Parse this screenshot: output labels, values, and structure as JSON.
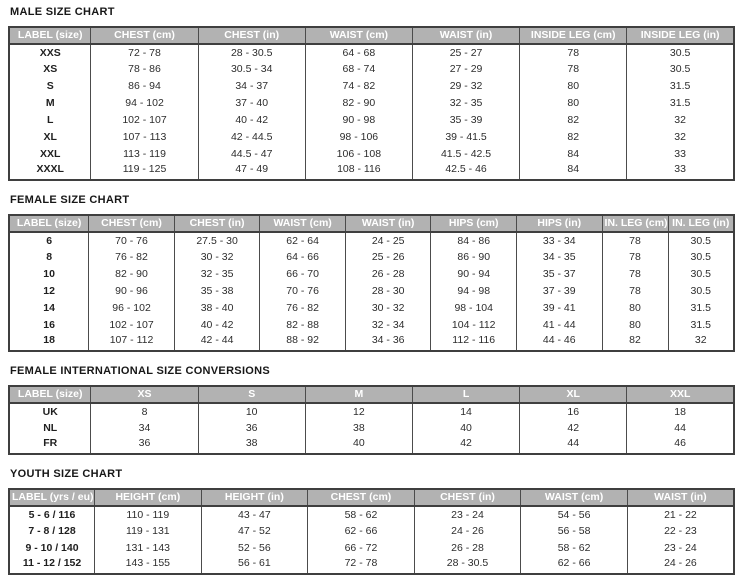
{
  "colors": {
    "header_bg": "#b2b2b2",
    "header_text": "#ffffff",
    "table_border": "#3f3f3f",
    "column_divider": "#4c4c4c",
    "body_text": "#2d2d2d",
    "title_text": "#171717",
    "page_bg": "#ffffff"
  },
  "tables": [
    {
      "title": "MALE SIZE CHART",
      "headers": [
        "LABEL (size)",
        "CHEST (cm)",
        "CHEST (in)",
        "WAIST (cm)",
        "WAIST (in)",
        "INSIDE LEG (cm)",
        "INSIDE LEG (in)"
      ],
      "rows": [
        [
          "XXS",
          "72 - 78",
          "28 - 30.5",
          "64 - 68",
          "25 - 27",
          "78",
          "30.5"
        ],
        [
          "XS",
          "78 - 86",
          "30.5 - 34",
          "68 - 74",
          "27 - 29",
          "78",
          "30.5"
        ],
        [
          "S",
          "86 - 94",
          "34 - 37",
          "74 - 82",
          "29 - 32",
          "80",
          "31.5"
        ],
        [
          "M",
          "94 - 102",
          "37 - 40",
          "82 - 90",
          "32 - 35",
          "80",
          "31.5"
        ],
        [
          "L",
          "102 - 107",
          "40 - 42",
          "90 - 98",
          "35 - 39",
          "82",
          "32"
        ],
        [
          "XL",
          "107 - 113",
          "42 - 44.5",
          "98 - 106",
          "39 - 41.5",
          "82",
          "32"
        ],
        [
          "XXL",
          "113 - 119",
          "44.5 - 47",
          "106 - 108",
          "41.5 - 42.5",
          "84",
          "33"
        ],
        [
          "XXXL",
          "119 - 125",
          "47 - 49",
          "108 - 116",
          "42.5 - 46",
          "84",
          "33"
        ]
      ]
    },
    {
      "title": "FEMALE SIZE CHART",
      "headers": [
        "LABEL (size)",
        "CHEST (cm)",
        "CHEST (in)",
        "WAIST (cm)",
        "WAIST (in)",
        "HIPS (cm)",
        "HIPS (in)",
        "IN. LEG (cm)",
        "IN. LEG (in)"
      ],
      "rows": [
        [
          "6",
          "70 - 76",
          "27.5 - 30",
          "62 - 64",
          "24 - 25",
          "84 - 86",
          "33 - 34",
          "78",
          "30.5"
        ],
        [
          "8",
          "76 - 82",
          "30 - 32",
          "64 - 66",
          "25 - 26",
          "86 - 90",
          "34 - 35",
          "78",
          "30.5"
        ],
        [
          "10",
          "82 - 90",
          "32 - 35",
          "66 - 70",
          "26 - 28",
          "90 - 94",
          "35 - 37",
          "78",
          "30.5"
        ],
        [
          "12",
          "90 - 96",
          "35 - 38",
          "70 - 76",
          "28 - 30",
          "94 - 98",
          "37 - 39",
          "78",
          "30.5"
        ],
        [
          "14",
          "96 - 102",
          "38 - 40",
          "76 - 82",
          "30 - 32",
          "98 - 104",
          "39 - 41",
          "80",
          "31.5"
        ],
        [
          "16",
          "102 - 107",
          "40 - 42",
          "82 - 88",
          "32 - 34",
          "104 - 112",
          "41 - 44",
          "80",
          "31.5"
        ],
        [
          "18",
          "107 - 112",
          "42 - 44",
          "88 - 92",
          "34 - 36",
          "112 - 116",
          "44 - 46",
          "82",
          "32"
        ]
      ]
    },
    {
      "title": "FEMALE INTERNATIONAL SIZE CONVERSIONS",
      "headers": [
        "LABEL (size)",
        "XS",
        "S",
        "M",
        "L",
        "XL",
        "XXL"
      ],
      "rows": [
        [
          "UK",
          "8",
          "10",
          "12",
          "14",
          "16",
          "18"
        ],
        [
          "NL",
          "34",
          "36",
          "38",
          "40",
          "42",
          "44"
        ],
        [
          "FR",
          "36",
          "38",
          "40",
          "42",
          "44",
          "46"
        ]
      ]
    },
    {
      "title": "YOUTH SIZE CHART",
      "headers": [
        "LABEL (yrs / eu)",
        "HEIGHT (cm)",
        "HEIGHT (in)",
        "CHEST (cm)",
        "CHEST (in)",
        "WAIST (cm)",
        "WAIST (in)"
      ],
      "rows": [
        [
          "5 - 6 / 116",
          "110 - 119",
          "43 - 47",
          "58 - 62",
          "23 - 24",
          "54 - 56",
          "21 - 22"
        ],
        [
          "7 - 8 / 128",
          "119 - 131",
          "47 - 52",
          "62 - 66",
          "24 - 26",
          "56 - 58",
          "22 - 23"
        ],
        [
          "9 - 10 / 140",
          "131 - 143",
          "52 - 56",
          "66 - 72",
          "26 - 28",
          "58 - 62",
          "23 - 24"
        ],
        [
          "11 - 12 / 152",
          "143 - 155",
          "56 - 61",
          "72 - 78",
          "28 - 30.5",
          "62 - 66",
          "24 - 26"
        ]
      ]
    }
  ]
}
